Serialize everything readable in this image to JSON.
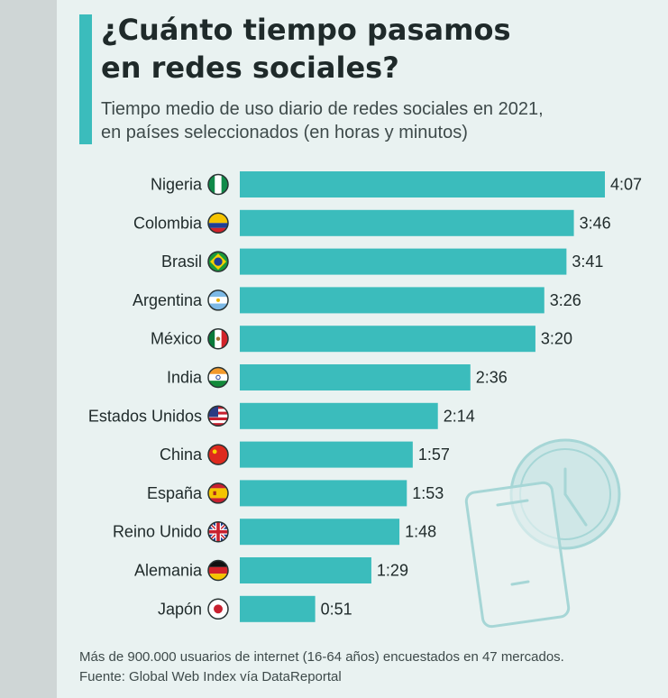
{
  "title_line1": "¿Cuánto tiempo pasamos",
  "title_line2": "en redes sociales?",
  "subtitle_line1": "Tiempo medio de uso diario de redes sociales en 2021,",
  "subtitle_line2": "en países seleccionados (en horas y minutos)",
  "footnote_line1": "Más de 900.000 usuarios de internet (16-64 años) encuestados en 47 mercados.",
  "footnote_line2": "Fuente: Global Web Index vía DataReportal",
  "colors": {
    "bar": "#3bbcbc",
    "accent": "#3bbcbc",
    "text": "#1f2a2a"
  },
  "chart_data": {
    "type": "bar",
    "orientation": "horizontal",
    "categories": [
      "Nigeria",
      "Colombia",
      "Brasil",
      "Argentina",
      "México",
      "India",
      "Estados Unidos",
      "China",
      "España",
      "Reino Unido",
      "Alemania",
      "Japón"
    ],
    "values_minutes": [
      247,
      226,
      221,
      206,
      200,
      156,
      134,
      117,
      113,
      108,
      89,
      51
    ],
    "data_labels": [
      "4:07",
      "3:46",
      "3:41",
      "3:26",
      "3:20",
      "2:36",
      "2:14",
      "1:57",
      "1:53",
      "1:48",
      "1:29",
      "0:51"
    ],
    "flag_icons": [
      "flag-nigeria-icon",
      "flag-colombia-icon",
      "flag-brasil-icon",
      "flag-argentina-icon",
      "flag-mexico-icon",
      "flag-india-icon",
      "flag-usa-icon",
      "flag-china-icon",
      "flag-spain-icon",
      "flag-uk-icon",
      "flag-germany-icon",
      "flag-japan-icon"
    ],
    "grid": false,
    "legend": "none"
  },
  "decoration_icons": [
    "smartphone-icon",
    "clock-icon"
  ]
}
